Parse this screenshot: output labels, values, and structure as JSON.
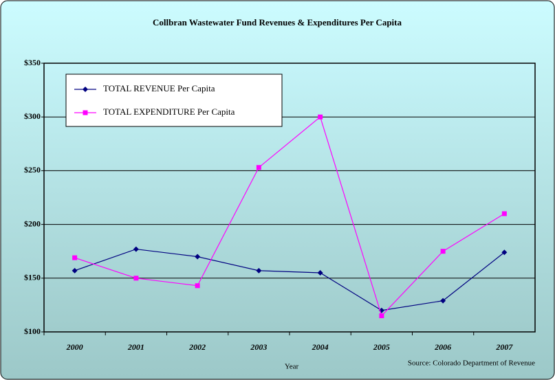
{
  "chart_data": {
    "type": "line",
    "title": "Collbran Wastewater Fund Revenues & Expenditures Per Capita",
    "x_label": "Year",
    "annotation": "Source: Colorado Department of Revenue",
    "categories": [
      "2000",
      "2001",
      "2002",
      "2003",
      "2004",
      "2005",
      "2006",
      "2007"
    ],
    "series": [
      {
        "name": "TOTAL REVENUE Per Capita",
        "color": "#000080",
        "marker": "diamond",
        "values": [
          157,
          177,
          170,
          157,
          155,
          120,
          129,
          174
        ]
      },
      {
        "name": "TOTAL EXPENDITURE Per Capita",
        "color": "#ff00ff",
        "marker": "square",
        "values": [
          169,
          150,
          143,
          253,
          300,
          115,
          175,
          210
        ]
      }
    ],
    "ylim": [
      100,
      350
    ],
    "yticks": [
      {
        "value": 100,
        "label": "$100"
      },
      {
        "value": 150,
        "label": "$150"
      },
      {
        "value": 200,
        "label": "$200"
      },
      {
        "value": 250,
        "label": "$250"
      },
      {
        "value": 300,
        "label": "$300"
      },
      {
        "value": 350,
        "label": "$350"
      }
    ],
    "grid": true,
    "legend": "top-left"
  }
}
